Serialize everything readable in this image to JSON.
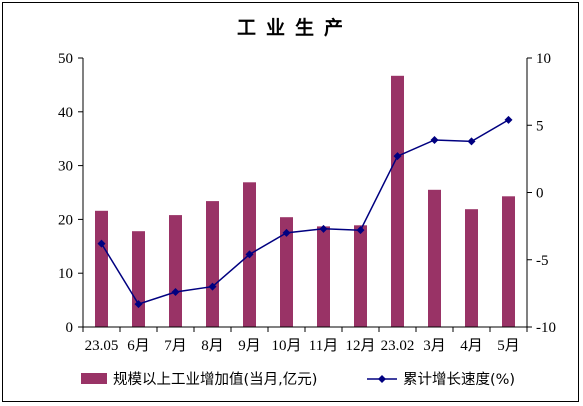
{
  "chart_data": {
    "type": "bar+line",
    "title": "工业生产",
    "categories": [
      "23.05",
      "6月",
      "7月",
      "8月",
      "9月",
      "10月",
      "11月",
      "12月",
      "23.02",
      "3月",
      "4月",
      "5月"
    ],
    "series": [
      {
        "name": "规模以上工业增加值(当月,亿元)",
        "type": "bar",
        "axis": "left",
        "color": "#993366",
        "values": [
          21.6,
          17.8,
          20.8,
          23.4,
          26.9,
          20.4,
          18.7,
          18.9,
          46.7,
          25.5,
          21.9,
          24.3
        ]
      },
      {
        "name": "累计增长速度(%)",
        "type": "line",
        "axis": "right",
        "color": "#000080",
        "values": [
          -3.8,
          -8.3,
          -7.4,
          -7.0,
          -4.6,
          -3.0,
          -2.7,
          -2.8,
          2.7,
          3.9,
          3.8,
          5.4
        ]
      }
    ],
    "y_left": {
      "ylim": [
        0,
        50
      ],
      "ticks": [
        "0",
        "10",
        "20",
        "30",
        "40",
        "50"
      ]
    },
    "y_right": {
      "ylim": [
        -10,
        10
      ],
      "ticks": [
        "-10",
        "-5",
        "0",
        "5",
        "10"
      ]
    },
    "grid": false,
    "legend_position": "bottom"
  }
}
